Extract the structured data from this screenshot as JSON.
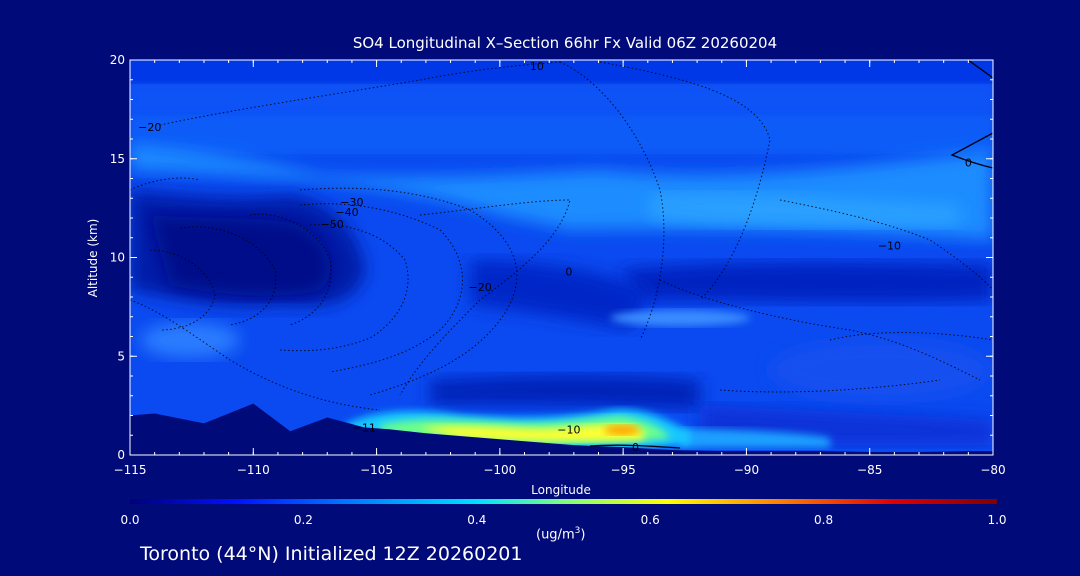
{
  "chart_data": {
    "type": "heatmap",
    "title": "SO4 Longitudinal X–Section 66hr  Fx Valid 06Z 20260204",
    "xlabel": "Longitude",
    "ylabel": "Altitude (km)",
    "xlim": [
      -115,
      -80
    ],
    "ylim": [
      0,
      20
    ],
    "x_ticks": [
      "−115",
      "−110",
      "−105",
      "−100",
      "−95",
      "−90",
      "−85",
      "−80"
    ],
    "y_ticks": [
      "0",
      "5",
      "10",
      "15",
      "20"
    ],
    "colorbar": {
      "label": "(ug/m",
      "label_sup": "3",
      "label_tail": ")",
      "min": 0.0,
      "max": 1.0,
      "ticks": [
        "0.0",
        "0.2",
        "0.4",
        "0.6",
        "0.8",
        "1.0"
      ],
      "colors": [
        "#00007a",
        "#0010ff",
        "#0078ff",
        "#00e0ff",
        "#7fff7f",
        "#ffff00",
        "#ff7f00",
        "#e00000",
        "#800000"
      ]
    },
    "contour_labels": [
      {
        "text": "10",
        "lon": -98.5,
        "alt": 19.7
      },
      {
        "text": "−20",
        "lon": -114.2,
        "alt": 16.6
      },
      {
        "text": "−30",
        "lon": -106.0,
        "alt": 12.8
      },
      {
        "text": "−40",
        "lon": -106.2,
        "alt": 12.3
      },
      {
        "text": "−50",
        "lon": -106.8,
        "alt": 11.7
      },
      {
        "text": "0",
        "lon": -97.2,
        "alt": 9.3
      },
      {
        "text": "−20",
        "lon": -100.8,
        "alt": 8.5
      },
      {
        "text": "−10",
        "lon": -84.2,
        "alt": 10.6
      },
      {
        "text": "0",
        "lon": -81.0,
        "alt": 14.8
      },
      {
        "text": "−10",
        "lon": -97.2,
        "alt": 1.3
      },
      {
        "text": "−11",
        "lon": -105.5,
        "alt": 1.4
      },
      {
        "text": "0",
        "lon": -94.5,
        "alt": 0.4
      }
    ],
    "series": [
      {
        "type": "plume",
        "lon": [
          -104.5,
          -103,
          -101,
          -99,
          -97,
          -95.5,
          -94,
          -93
        ],
        "alt": [
          1.7,
          1.9,
          1.3,
          1.1,
          1.2,
          1.6,
          1.4,
          0.7
        ],
        "value": [
          0.35,
          0.42,
          0.5,
          0.52,
          0.55,
          0.6,
          0.45,
          0.3
        ]
      }
    ],
    "terrain": {
      "lon": [
        -115,
        -114,
        -112,
        -110,
        -108.5,
        -107,
        -105.5,
        -104.5,
        -103,
        -101,
        -99,
        -97,
        -95,
        -93,
        -91,
        -89,
        -87,
        -85,
        -83,
        -81,
        -80
      ],
      "alt": [
        2.0,
        2.1,
        1.6,
        2.6,
        1.2,
        1.9,
        1.4,
        1.3,
        1.1,
        0.9,
        0.7,
        0.5,
        0.4,
        0.25,
        0.2,
        0.2,
        0.2,
        0.15,
        0.15,
        0.2,
        0.2
      ]
    }
  },
  "footer": "Toronto (44°N) Initialized 12Z 20260201"
}
